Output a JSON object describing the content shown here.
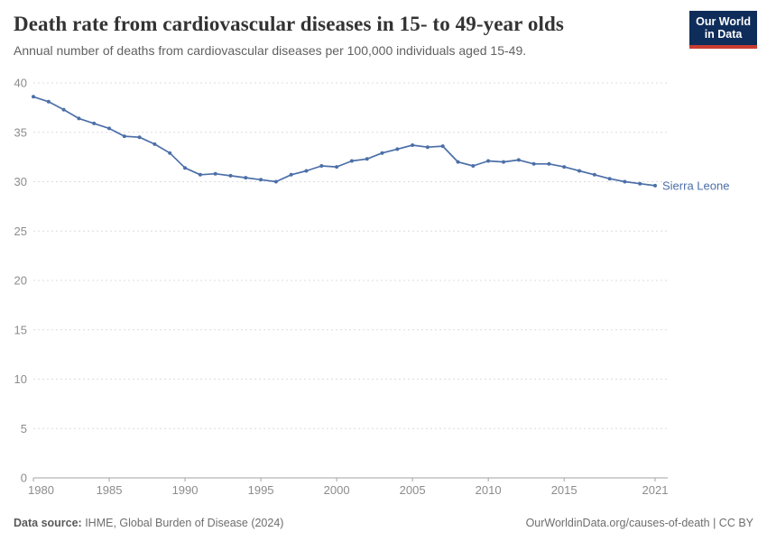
{
  "header": {
    "title": "Death rate from cardiovascular diseases in 15- to 49-year olds",
    "subtitle": "Annual number of deaths from cardiovascular diseases per 100,000 individuals aged 15-49.",
    "logo": {
      "line1": "Our World",
      "line2": "in Data"
    }
  },
  "chart_data": {
    "type": "line",
    "title": "Death rate from cardiovascular diseases in 15- to 49-year olds",
    "subtitle": "Annual number of deaths from cardiovascular diseases per 100,000 individuals aged 15-49.",
    "xlabel": "",
    "ylabel": "",
    "xlim": [
      1980,
      2021
    ],
    "ylim": [
      0,
      40
    ],
    "xticks": [
      1980,
      1985,
      1990,
      1995,
      2000,
      2005,
      2010,
      2015,
      2021
    ],
    "yticks": [
      0,
      5,
      10,
      15,
      20,
      25,
      30,
      35,
      40
    ],
    "grid": "horizontal-dashed",
    "legend_position": "end-of-line-label",
    "x": [
      1980,
      1981,
      1982,
      1983,
      1984,
      1985,
      1986,
      1987,
      1988,
      1989,
      1990,
      1991,
      1992,
      1993,
      1994,
      1995,
      1996,
      1997,
      1998,
      1999,
      2000,
      2001,
      2002,
      2003,
      2004,
      2005,
      2006,
      2007,
      2008,
      2009,
      2010,
      2011,
      2012,
      2013,
      2014,
      2015,
      2016,
      2017,
      2018,
      2019,
      2020,
      2021
    ],
    "series": [
      {
        "name": "Sierra Leone",
        "color": "#4c6fa8",
        "values": [
          38.6,
          38.1,
          37.3,
          36.4,
          35.9,
          35.4,
          34.6,
          34.5,
          33.8,
          32.9,
          31.4,
          30.7,
          30.8,
          30.6,
          30.4,
          30.2,
          30.0,
          30.7,
          31.1,
          31.6,
          31.5,
          32.1,
          32.3,
          32.9,
          33.3,
          33.7,
          33.5,
          33.6,
          32.0,
          31.6,
          32.1,
          32.0,
          32.2,
          31.8,
          31.8,
          31.5,
          31.1,
          30.7,
          30.3,
          30.0,
          29.8,
          29.6
        ]
      }
    ]
  },
  "footer": {
    "source_label": "Data source:",
    "source_text": " IHME, Global Burden of Disease (2024)",
    "credit": "OurWorldinData.org/causes-of-death | CC BY"
  },
  "colors": {
    "line": "#4c6fa8",
    "gridline": "#dcdcdc",
    "axis": "#a3a3a3",
    "tick_text": "#8c8c8c",
    "logo_bg": "#0e2d5a",
    "logo_accent": "#c93c32"
  }
}
